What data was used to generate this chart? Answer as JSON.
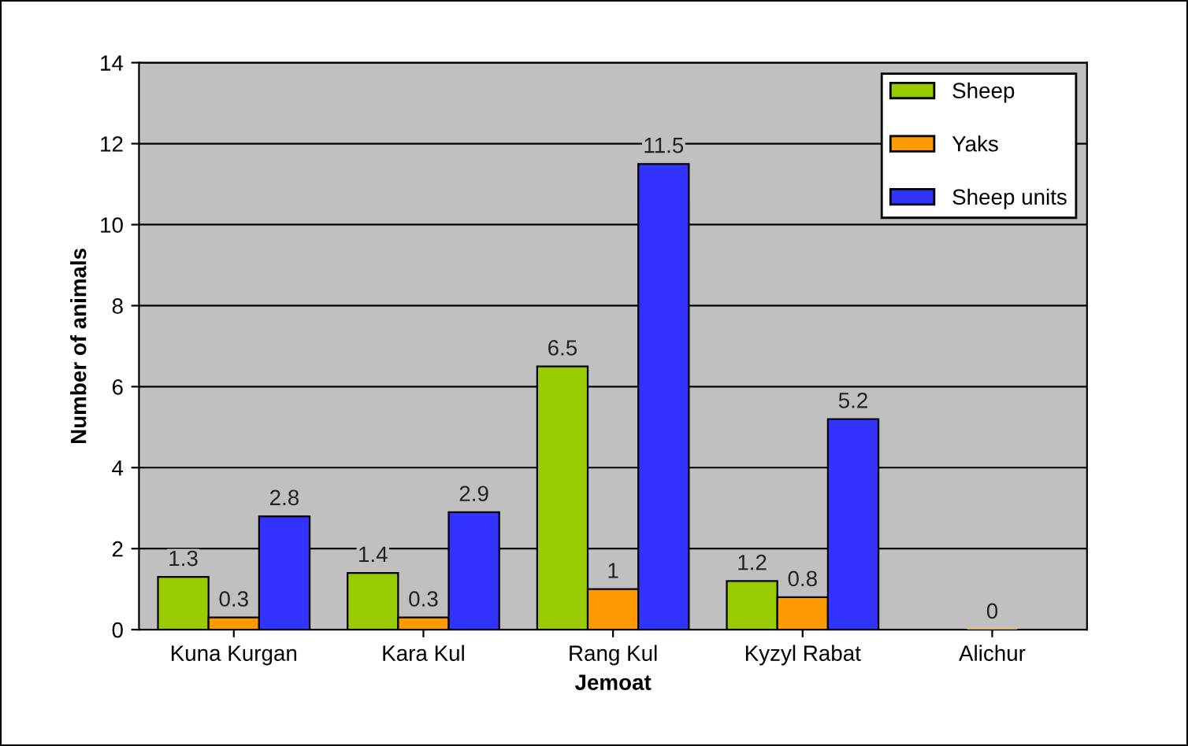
{
  "chart_data": {
    "type": "bar",
    "xlabel": "Jemoat",
    "ylabel": "Number of animals",
    "categories": [
      "Kuna Kurgan",
      "Kara Kul",
      "Rang Kul",
      "Kyzyl Rabat",
      "Alichur"
    ],
    "series": [
      {
        "name": "Sheep",
        "color": "#99cc00",
        "values": [
          1.3,
          1.4,
          6.5,
          1.2,
          null
        ],
        "value_labels": [
          "1.3",
          "1.4",
          "6.5",
          "1.2",
          null
        ]
      },
      {
        "name": "Yaks",
        "color": "#ff9900",
        "values": [
          0.3,
          0.3,
          1,
          0.8,
          0
        ],
        "value_labels": [
          "0.3",
          "0.3",
          "1",
          "0.8",
          "0"
        ]
      },
      {
        "name": "Sheep units",
        "color": "#3333ff",
        "values": [
          2.8,
          2.9,
          11.5,
          5.2,
          null
        ],
        "value_labels": [
          "2.8",
          "2.9",
          "11.5",
          "5.2",
          null
        ]
      }
    ],
    "ylim": [
      0,
      14
    ],
    "yticks": [
      0,
      2,
      4,
      6,
      8,
      10,
      12,
      14
    ],
    "grid": "y",
    "legend": "top right"
  }
}
